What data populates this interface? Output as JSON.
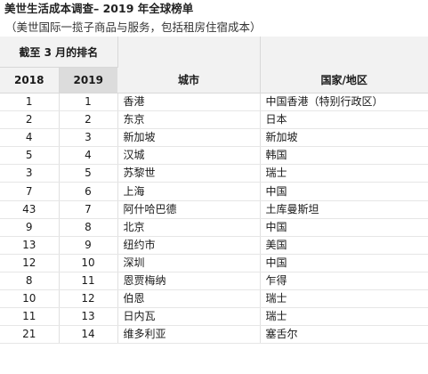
{
  "title": "美世生活成本调查– 2019 年全球榜单",
  "subtitle": "（美世国际一揽子商品与服务，包括租房住宿成本）",
  "headers": {
    "group": "截至 3 月的排名",
    "year_prev": "2018",
    "year_curr": "2019",
    "city": "城市",
    "country": "国家/地区"
  },
  "rows": [
    {
      "r2018": "1",
      "r2019": "1",
      "city": "香港",
      "country": "中国香港（特别行政区）"
    },
    {
      "r2018": "2",
      "r2019": "2",
      "city": "东京",
      "country": "日本"
    },
    {
      "r2018": "4",
      "r2019": "3",
      "city": "新加坡",
      "country": "新加坡"
    },
    {
      "r2018": "5",
      "r2019": "4",
      "city": "汉城",
      "country": "韩国"
    },
    {
      "r2018": "3",
      "r2019": "5",
      "city": "苏黎世",
      "country": "瑞士"
    },
    {
      "r2018": "7",
      "r2019": "6",
      "city": "上海",
      "country": "中国"
    },
    {
      "r2018": "43",
      "r2019": "7",
      "city": "阿什哈巴德",
      "country": "土库曼斯坦"
    },
    {
      "r2018": "9",
      "r2019": "8",
      "city": "北京",
      "country": "中国"
    },
    {
      "r2018": "13",
      "r2019": "9",
      "city": "纽约市",
      "country": "美国"
    },
    {
      "r2018": "12",
      "r2019": "10",
      "city": "深圳",
      "country": "中国"
    },
    {
      "r2018": "8",
      "r2019": "11",
      "city": "恩贾梅纳",
      "country": "乍得"
    },
    {
      "r2018": "10",
      "r2019": "12",
      "city": "伯恩",
      "country": "瑞士"
    },
    {
      "r2018": "11",
      "r2019": "13",
      "city": "日内瓦",
      "country": "瑞士"
    },
    {
      "r2018": "21",
      "r2019": "14",
      "city": "维多利亚",
      "country": "塞舌尔"
    }
  ]
}
